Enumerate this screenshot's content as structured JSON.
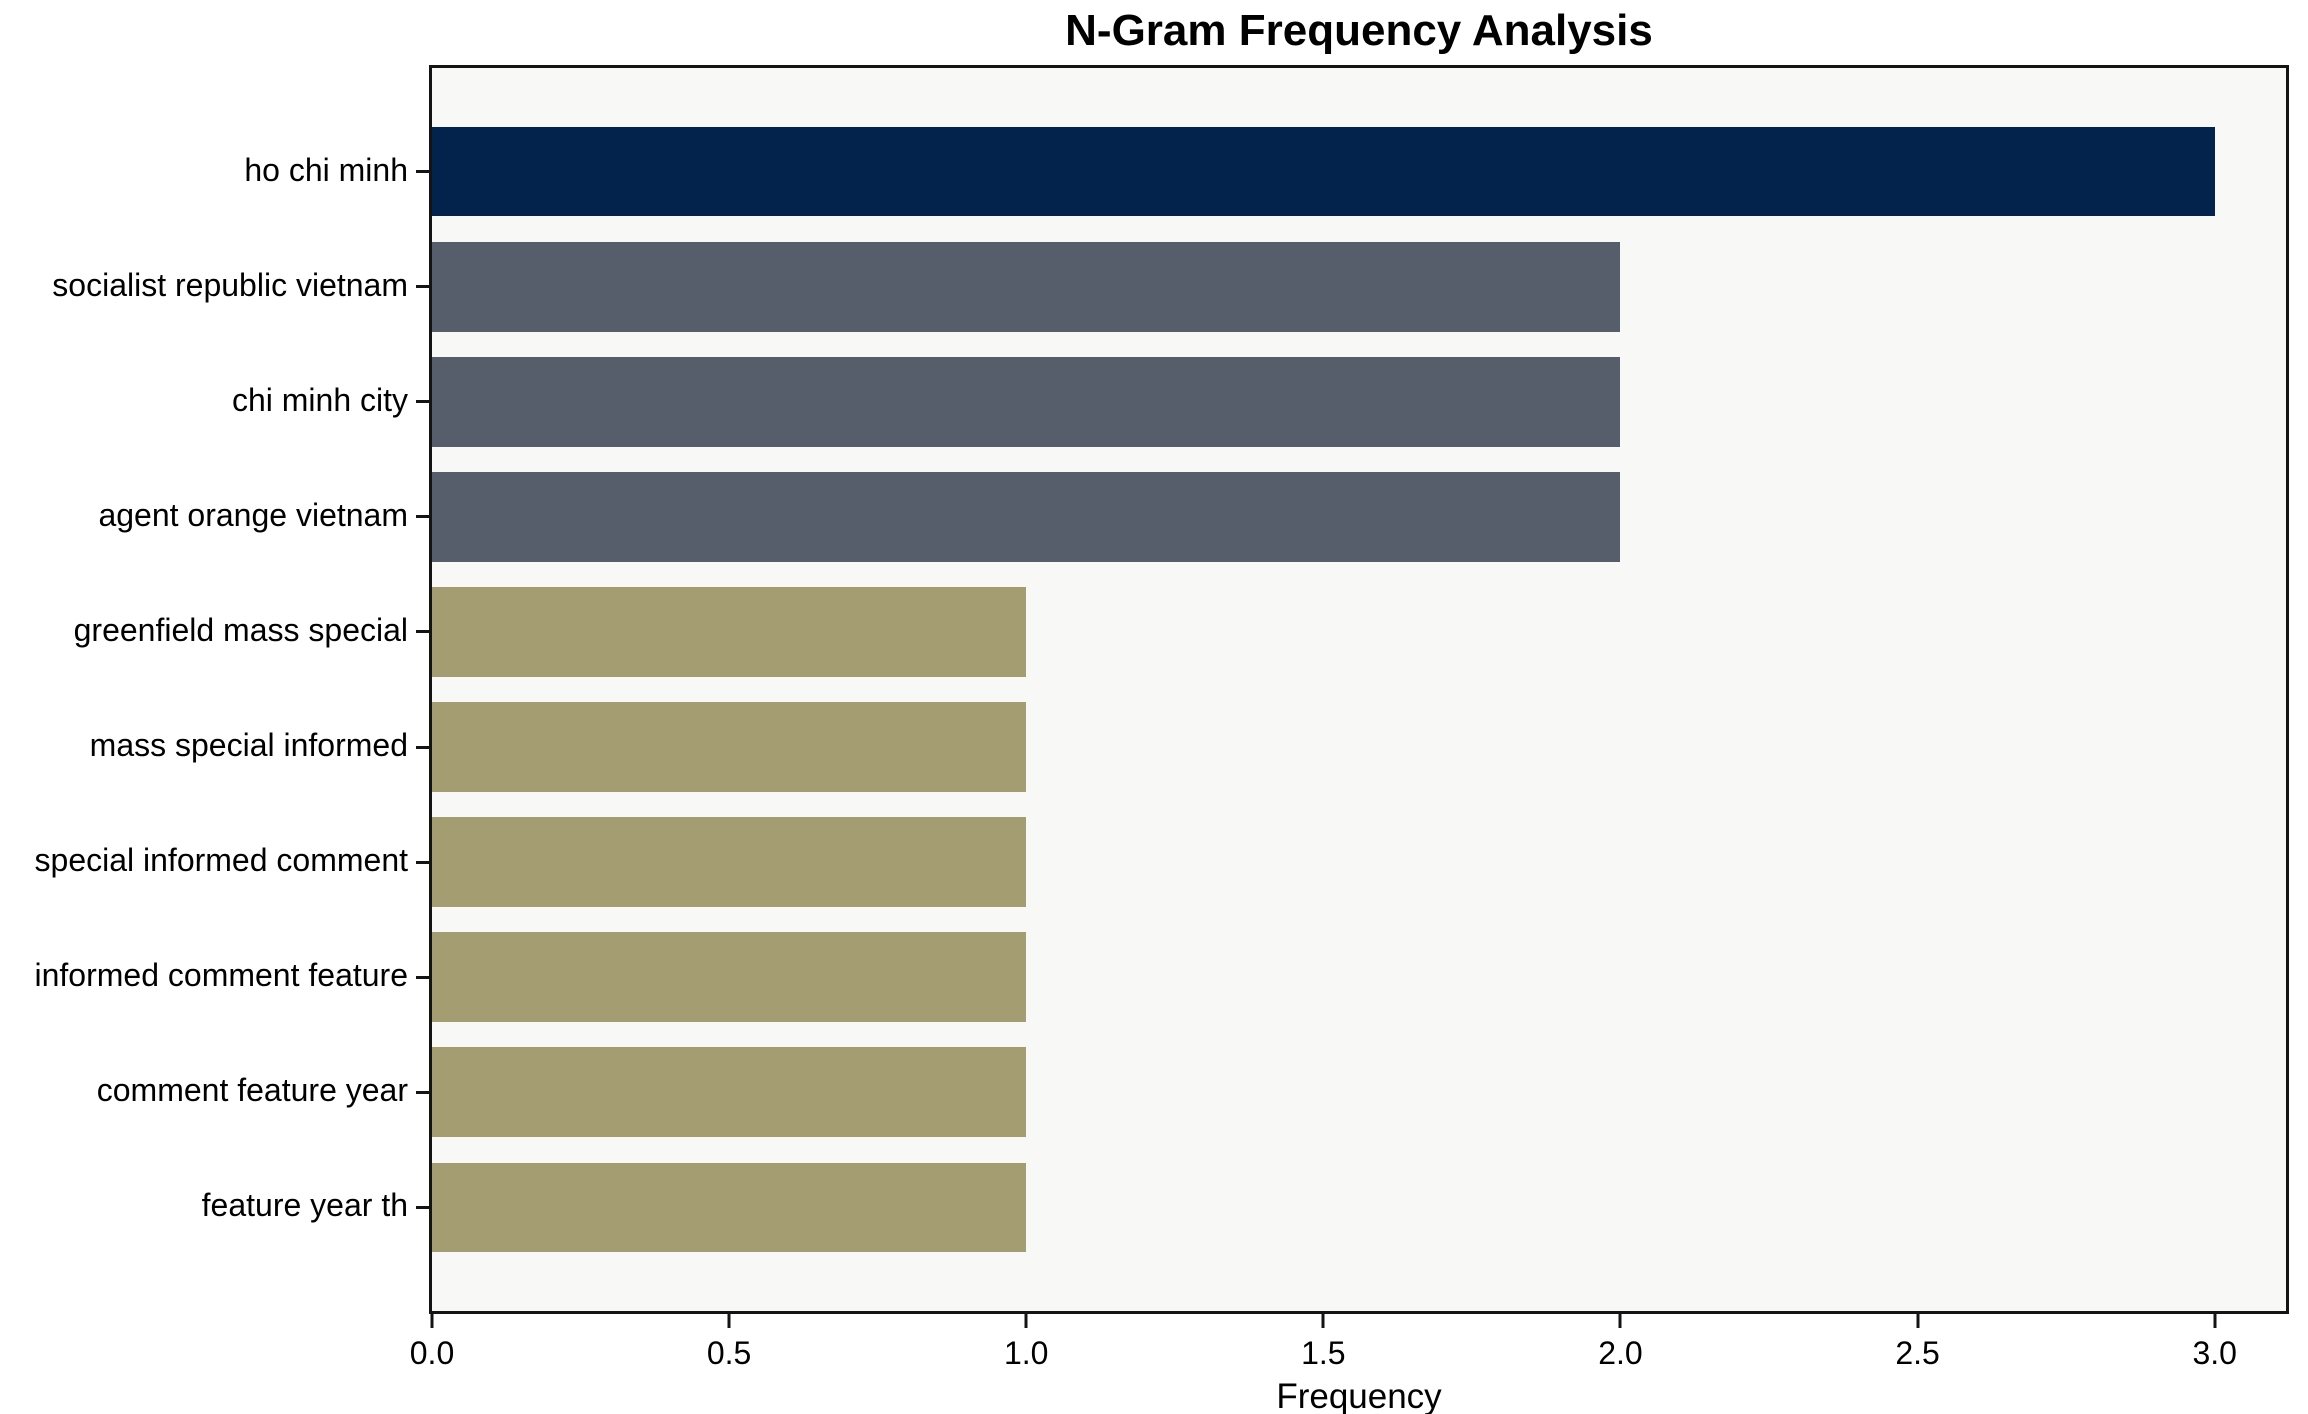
{
  "chart_data": {
    "type": "bar",
    "orientation": "horizontal",
    "title": "N-Gram Frequency Analysis",
    "xlabel": "Frequency",
    "ylabel": "",
    "categories": [
      "ho chi minh",
      "socialist republic vietnam",
      "chi minh city",
      "agent orange vietnam",
      "greenfield mass special",
      "mass special informed",
      "special informed comment",
      "informed comment feature",
      "comment feature year",
      "feature year th"
    ],
    "values": [
      3,
      2,
      2,
      2,
      1,
      1,
      1,
      1,
      1,
      1
    ],
    "bar_colors": [
      "#03234d",
      "#565d6b",
      "#565d6b",
      "#565d6b",
      "#a49d72",
      "#a49d72",
      "#a49d72",
      "#a49d72",
      "#a49d72",
      "#a49d72"
    ],
    "xlim": [
      0,
      3.12
    ],
    "xticks": [
      0.0,
      0.5,
      1.0,
      1.5,
      2.0,
      2.5,
      3.0
    ],
    "xtick_labels": [
      "0.0",
      "0.5",
      "1.0",
      "1.5",
      "2.0",
      "2.5",
      "3.0"
    ],
    "grid": false,
    "legend_position": "none",
    "plot_background": "#f8f8f7",
    "figure_background": "#ffffff",
    "axis_color": "#141414"
  }
}
